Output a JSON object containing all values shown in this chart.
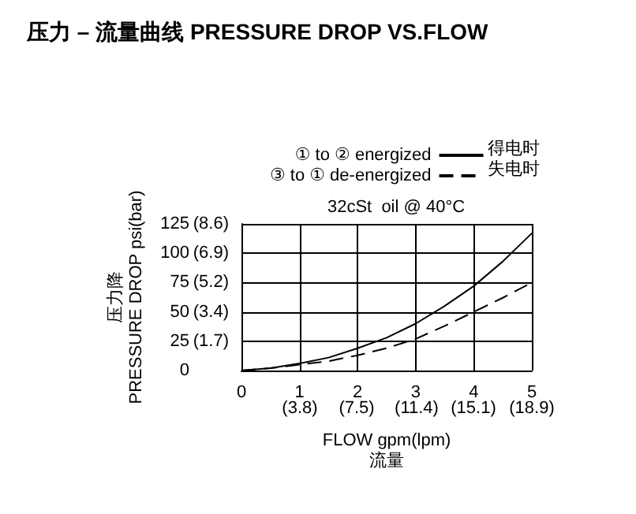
{
  "chart_data": {
    "type": "line",
    "title": "压力 – 流量曲线 PRESSURE DROP VS.FLOW",
    "subtitle": "32cSt  oil @ 40°C",
    "xlabel": "FLOW gpm(lpm)\n流量",
    "ylabel": "压力降\nPRESSURE DROP psi(bar)",
    "annotations": [
      "得电时",
      "失电时"
    ],
    "x": [
      0,
      0.5,
      1,
      1.5,
      2,
      2.5,
      3,
      3.5,
      4,
      4.5,
      5
    ],
    "series": [
      {
        "name": "① to ② energized",
        "color": "#000000",
        "line_style": "solid",
        "values": [
          0,
          2,
          6,
          11,
          19,
          28,
          40,
          55,
          72,
          93,
          117
        ]
      },
      {
        "name": "③ to ① de-energized",
        "color": "#000000",
        "line_style": "dashed",
        "values": [
          0,
          2,
          5,
          8,
          13,
          19,
          27,
          38,
          50,
          62,
          75
        ]
      }
    ],
    "xlim": [
      0,
      5
    ],
    "xticks": [
      0,
      1,
      2,
      3,
      4,
      5
    ],
    "x2lim": [
      0,
      18.9
    ],
    "x2ticks": [
      {
        "value": 3.8,
        "label": "(3.8)"
      },
      {
        "value": 7.5,
        "label": "(7.5)"
      },
      {
        "value": 11.4,
        "label": "(11.4)"
      },
      {
        "value": 15.1,
        "label": "(15.1)"
      },
      {
        "value": 18.9,
        "label": "(18.9)"
      }
    ],
    "ylim": [
      0,
      125
    ],
    "yticks": [
      0,
      25,
      50,
      75,
      100,
      125
    ],
    "y2lim": [
      0,
      8.6
    ],
    "y2ticks": [
      {
        "value": 1.7,
        "label": "(1.7)"
      },
      {
        "value": 3.4,
        "label": "(3.4)"
      },
      {
        "value": 5.2,
        "label": "(5.2)"
      },
      {
        "value": 6.9,
        "label": "(6.9)"
      },
      {
        "value": 8.6,
        "label": "(8.6)"
      }
    ],
    "grid": true,
    "legend": "top",
    "marker": "none"
  }
}
